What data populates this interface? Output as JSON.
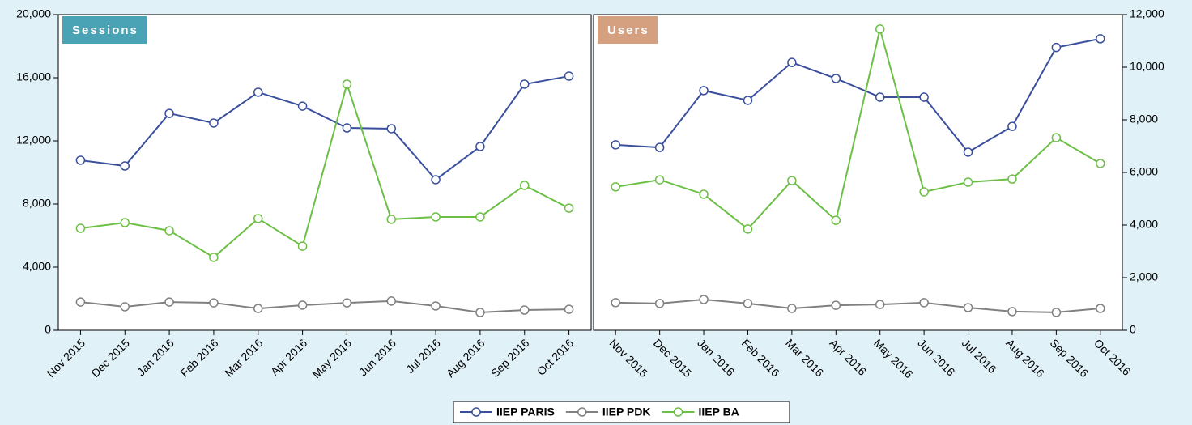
{
  "chart_data": [
    {
      "type": "line",
      "title": "Sessions",
      "title_color": "#4aa3b5",
      "yaxis": "left",
      "categories": [
        "Nov 2015",
        "Dec 2015",
        "Jan 2016",
        "Feb 2016",
        "Mar 2016",
        "Apr 2016",
        "May 2016",
        "Jun 2016",
        "Jul 2016",
        "Aug 2016",
        "Sep 2016",
        "Oct 2016"
      ],
      "ylim": [
        0,
        20000
      ],
      "yticks": [
        0,
        {
          "value": 4000,
          "label": "4,000"
        },
        {
          "value": 8000,
          "label": "8,000"
        },
        {
          "value": 12000,
          "label": "12,000"
        },
        {
          "value": 16000,
          "label": "16,000"
        },
        {
          "value": 20000,
          "label": "20,000"
        }
      ],
      "series": [
        {
          "name": "IIEP PARIS",
          "color": "#3a4f9c",
          "values": [
            10770,
            10410,
            13740,
            13130,
            15080,
            14200,
            12820,
            12770,
            9540,
            11640,
            15590,
            16100
          ]
        },
        {
          "name": "IIEP PDK",
          "color": "#808080",
          "values": [
            1790,
            1490,
            1790,
            1740,
            1380,
            1590,
            1740,
            1850,
            1540,
            1130,
            1280,
            1330
          ]
        },
        {
          "name": "IIEP BA",
          "color": "#6cbf45",
          "values": [
            6460,
            6820,
            6310,
            4620,
            7080,
            5330,
            15590,
            7030,
            7180,
            7180,
            9180,
            7740
          ]
        }
      ]
    },
    {
      "type": "line",
      "title": "Users",
      "title_color": "#d4a080",
      "yaxis": "right",
      "categories": [
        "Nov 2015",
        "Dec 2015",
        "Jan 2016",
        "Feb 2016",
        "Mar 2016",
        "Apr 2016",
        "May 2016",
        "Jun 2016",
        "Jul 2016",
        "Aug 2016",
        "Sep 2016",
        "Oct 2016"
      ],
      "ylim": [
        0,
        12000
      ],
      "yticks": [
        0,
        {
          "value": 2000,
          "label": "2,000"
        },
        {
          "value": 4000,
          "label": "4,000"
        },
        {
          "value": 6000,
          "label": "6,000"
        },
        {
          "value": 8000,
          "label": "8,000"
        },
        {
          "value": 10000,
          "label": "10,000"
        },
        {
          "value": 12000,
          "label": "12,000"
        }
      ],
      "series": [
        {
          "name": "IIEP PARIS",
          "color": "#3a4f9c",
          "values": [
            7050,
            6950,
            9110,
            8740,
            10180,
            9570,
            8860,
            8860,
            6770,
            7750,
            10750,
            11080
          ]
        },
        {
          "name": "IIEP PDK",
          "color": "#808080",
          "values": [
            1050,
            1020,
            1170,
            1020,
            830,
            950,
            980,
            1050,
            860,
            710,
            680,
            830
          ]
        },
        {
          "name": "IIEP BA",
          "color": "#6cbf45",
          "values": [
            5450,
            5720,
            5170,
            3850,
            5690,
            4180,
            11450,
            5260,
            5630,
            5750,
            7320,
            6340
          ]
        }
      ]
    }
  ]
}
